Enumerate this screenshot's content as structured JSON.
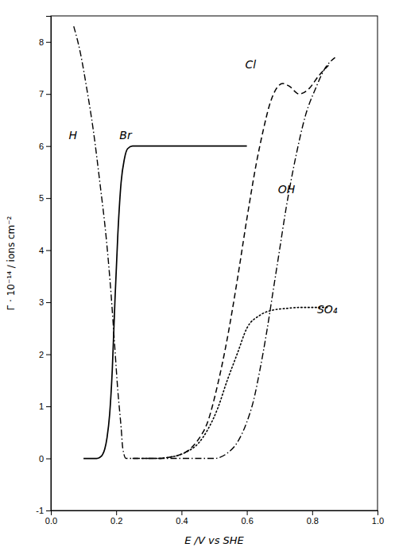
{
  "chart_data": {
    "type": "line",
    "xlabel": "E /V vs SHE",
    "ylabel": "Γ · 10⁻¹⁴ / ions cm⁻²",
    "xlim": [
      0.0,
      1.0
    ],
    "ylim": [
      -1.0,
      8.5
    ],
    "xticks": [
      {
        "value": 0.0,
        "label": "0.0"
      },
      0.2,
      0.4,
      0.6,
      0.8,
      {
        "value": 1.0,
        "label": "1.0"
      }
    ],
    "yticks": [
      -1,
      0,
      1,
      2,
      3,
      4,
      5,
      6,
      7,
      8
    ],
    "grid": false,
    "series": [
      {
        "color": "black",
        "line_style": "dashdot",
        "x": [
          0.07,
          0.09,
          0.11,
          0.13,
          0.15,
          0.17,
          0.185,
          0.195,
          0.205,
          0.215,
          0.22,
          0.23,
          0.25,
          0.28,
          0.32,
          0.38,
          0.44,
          0.5,
          0.54,
          0.57,
          0.6,
          0.62,
          0.64,
          0.66,
          0.68,
          0.7,
          0.72,
          0.75,
          0.78,
          0.81,
          0.84,
          0.87
        ],
        "values": [
          8.3,
          7.8,
          7.1,
          6.3,
          5.3,
          4.2,
          3.1,
          2.2,
          1.3,
          0.6,
          0.2,
          0.0,
          0.0,
          0.0,
          0.0,
          0.0,
          0.0,
          0.0,
          0.1,
          0.3,
          0.7,
          1.1,
          1.7,
          2.4,
          3.2,
          4.0,
          4.8,
          5.8,
          6.6,
          7.1,
          7.5,
          7.7
        ]
      },
      {
        "color": "black",
        "line_style": "solid",
        "x": [
          0.1,
          0.12,
          0.14,
          0.15,
          0.158,
          0.165,
          0.172,
          0.18,
          0.188,
          0.196,
          0.205,
          0.215,
          0.225,
          0.235,
          0.25,
          0.28,
          0.35,
          0.5,
          0.6
        ],
        "values": [
          0.0,
          0.0,
          0.0,
          0.02,
          0.07,
          0.18,
          0.4,
          0.85,
          1.7,
          3.0,
          4.3,
          5.3,
          5.75,
          5.95,
          6.0,
          6.0,
          6.0,
          6.0,
          6.0
        ]
      },
      {
        "color": "black",
        "line_style": "dashed",
        "x": [
          0.25,
          0.28,
          0.3,
          0.33,
          0.36,
          0.39,
          0.42,
          0.45,
          0.48,
          0.51,
          0.54,
          0.57,
          0.6,
          0.63,
          0.65,
          0.67,
          0.69,
          0.71,
          0.73,
          0.76,
          0.79,
          0.82,
          0.85
        ],
        "values": [
          0.0,
          0.0,
          0.0,
          0.0,
          0.02,
          0.06,
          0.15,
          0.35,
          0.7,
          1.4,
          2.3,
          3.4,
          4.6,
          5.7,
          6.3,
          6.8,
          7.1,
          7.2,
          7.15,
          7.0,
          7.1,
          7.35,
          7.55
        ]
      },
      {
        "color": "black",
        "line_style": "dotted",
        "x": [
          0.3,
          0.33,
          0.36,
          0.39,
          0.42,
          0.45,
          0.48,
          0.51,
          0.54,
          0.57,
          0.6,
          0.64,
          0.68,
          0.72,
          0.76,
          0.8,
          0.85
        ],
        "values": [
          0.0,
          0.0,
          0.02,
          0.06,
          0.14,
          0.28,
          0.55,
          0.95,
          1.5,
          2.0,
          2.5,
          2.75,
          2.85,
          2.88,
          2.9,
          2.9,
          2.9
        ]
      }
    ],
    "annotations": [
      {
        "text": "H",
        "x": 0.055,
        "y": 6.2
      },
      {
        "text": "Br",
        "x": 0.21,
        "y": 6.2
      },
      {
        "text": "Cl",
        "x": 0.595,
        "y": 7.55
      },
      {
        "text": "OH",
        "x": 0.695,
        "y": 5.15
      },
      {
        "text": "SO₄",
        "x": 0.815,
        "y": 2.85
      }
    ]
  }
}
